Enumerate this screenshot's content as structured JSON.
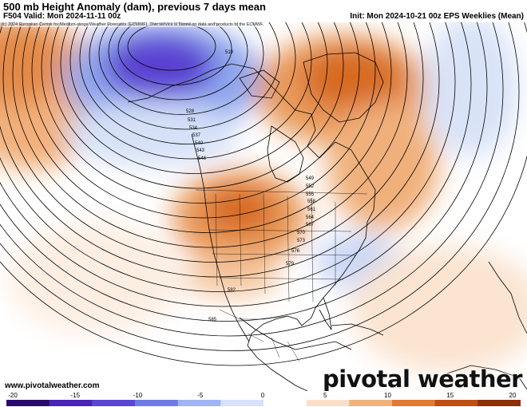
{
  "header": {
    "title": "500 mb Height Anomaly (dam), previous 7 days mean",
    "valid": "F504 Valid: Mon 2024-11-11 00z",
    "init": "Init: Mon 2024-10-21 00z EPS Weeklies (Mean)"
  },
  "credit": "(c) 2024 European Centre for Medium-range Weather Forecasts (ECMWF). This service is based on data and products of the ECMWF.",
  "footer": {
    "site": "www.pivotalweather.com",
    "brand": "pivotal weather"
  },
  "colorbar": {
    "ticks": [
      "-20",
      "-15",
      "-10",
      "-5",
      "0",
      "5",
      "10",
      "15",
      "20"
    ],
    "colors": [
      "#2a0a6e",
      "#4a22b8",
      "#5a45d6",
      "#6f7ae6",
      "#9fb4f2",
      "#d8e2fa",
      "#ffffff",
      "#fbe0c9",
      "#f4b27a",
      "#e27a32",
      "#c24e10",
      "#8f300a"
    ]
  },
  "contour_labels": [
    "519",
    "528",
    "531",
    "534",
    "537",
    "540",
    "543",
    "546",
    "549",
    "552",
    "555",
    "558",
    "561",
    "564",
    "567",
    "570",
    "573",
    "576",
    "579",
    "582",
    "585"
  ],
  "map": {
    "colors": {
      "deep_negative": "#4422c0",
      "negative": "#7f9ce8",
      "light_negative": "#cfdcf6",
      "light_positive": "#fbe3cf",
      "positive": "#f0a866",
      "strong_positive": "#d9661e",
      "land": "#000000",
      "contour": "#000000"
    }
  }
}
